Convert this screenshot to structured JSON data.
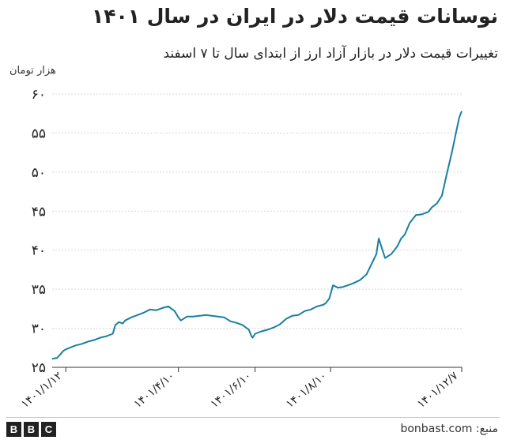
{
  "chart_data": {
    "type": "line",
    "title": "نوسانات قیمت دلار در ایران در سال ۱۴۰۱",
    "subtitle": "تغییرات قیمت دلار در بازار آزاد ارز از ابتدای سال تا ۷ اسفند",
    "ylabel": "هزار تومان",
    "ylim": [
      25,
      60
    ],
    "yticks": [
      {
        "value": 25,
        "label": "۲۵"
      },
      {
        "value": 30,
        "label": "۳۰"
      },
      {
        "value": 35,
        "label": "۳۵"
      },
      {
        "value": 40,
        "label": "۴۰"
      },
      {
        "value": 45,
        "label": "۴۵"
      },
      {
        "value": 50,
        "label": "۵۰"
      },
      {
        "value": 55,
        "label": "۵۵"
      },
      {
        "value": 60,
        "label": "۶۰"
      }
    ],
    "xlim": [
      1,
      332
    ],
    "xticks": [
      {
        "value": 12,
        "label": "۱۴۰۱/۱/۱۲"
      },
      {
        "value": 103,
        "label": "۱۴۰۱/۴/۱۰"
      },
      {
        "value": 165,
        "label": "۱۴۰۱/۶/۱۰"
      },
      {
        "value": 226,
        "label": "۱۴۰۱/۸/۱۰"
      },
      {
        "value": 332,
        "label": "۱۴۰۱/۱۲/۷"
      }
    ],
    "grid": "horizontal",
    "series": [
      {
        "color": "#1a7fa1",
        "x": [
          1,
          5,
          10,
          12,
          15,
          20,
          25,
          30,
          35,
          40,
          45,
          50,
          52,
          55,
          58,
          60,
          65,
          70,
          75,
          80,
          85,
          90,
          95,
          100,
          103,
          105,
          110,
          115,
          120,
          125,
          130,
          135,
          140,
          145,
          150,
          155,
          160,
          162,
          163,
          165,
          170,
          175,
          180,
          185,
          190,
          195,
          200,
          205,
          210,
          215,
          220,
          222,
          225,
          228,
          232,
          236,
          240,
          245,
          250,
          255,
          260,
          263,
          265,
          270,
          275,
          280,
          283,
          286,
          290,
          295,
          300,
          305,
          308,
          312,
          316,
          320,
          324,
          326,
          328,
          330,
          332
        ],
        "values": [
          26.1,
          26.2,
          27.1,
          27.3,
          27.5,
          27.8,
          28.0,
          28.3,
          28.5,
          28.8,
          29.0,
          29.3,
          30.4,
          30.8,
          30.6,
          31.0,
          31.4,
          31.7,
          32.0,
          32.4,
          32.3,
          32.6,
          32.8,
          32.2,
          31.4,
          31.0,
          31.5,
          31.5,
          31.6,
          31.7,
          31.6,
          31.5,
          31.4,
          30.9,
          30.7,
          30.4,
          29.8,
          29.0,
          28.8,
          29.3,
          29.6,
          29.8,
          30.1,
          30.5,
          31.2,
          31.6,
          31.7,
          32.2,
          32.4,
          32.8,
          33.0,
          33.2,
          33.8,
          35.5,
          35.2,
          35.3,
          35.5,
          35.8,
          36.2,
          36.9,
          38.5,
          39.5,
          41.5,
          39.0,
          39.5,
          40.5,
          41.5,
          42.0,
          43.5,
          44.5,
          44.6,
          44.9,
          45.5,
          46.0,
          47.0,
          49.8,
          52.5,
          54.0,
          55.5,
          57.0,
          57.8
        ]
      }
    ]
  },
  "footer": {
    "logo_letters": [
      "B",
      "B",
      "C"
    ],
    "source": "منبع: bonbast.com"
  }
}
